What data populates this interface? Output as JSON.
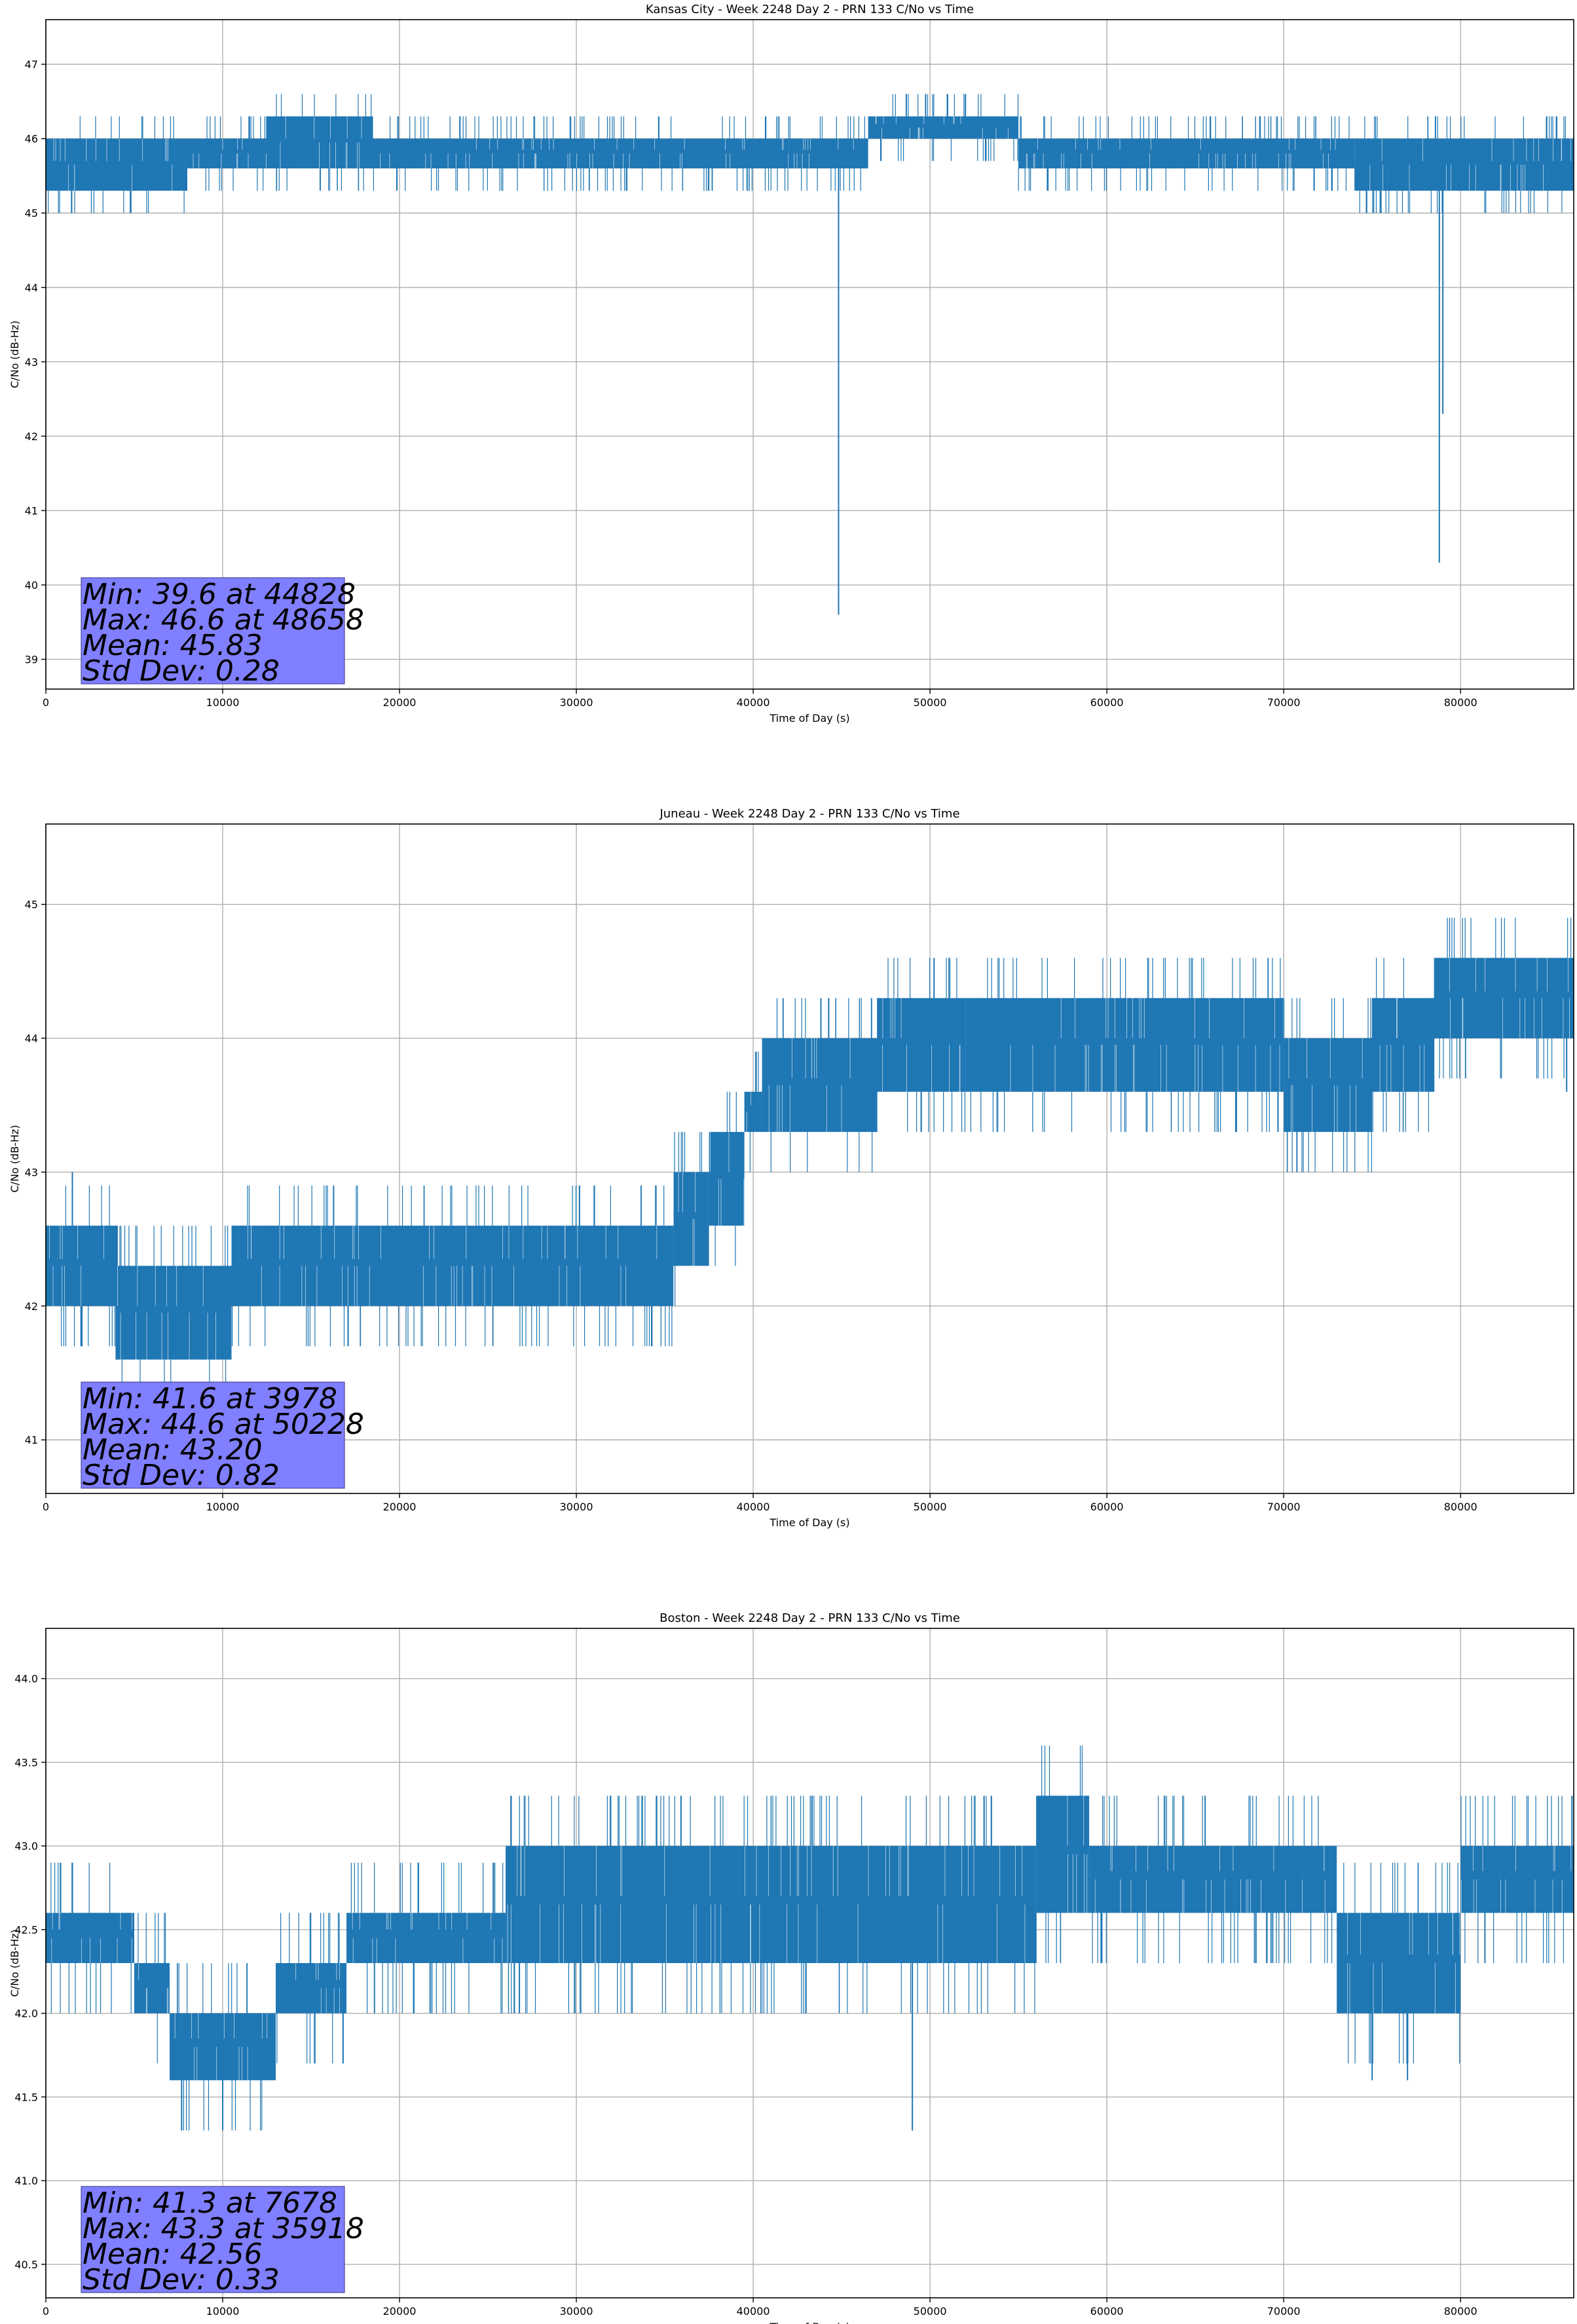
{
  "chart_data": [
    {
      "type": "line",
      "title": "Kansas City - Week 2248 Day 2 - PRN 133 C/No vs Time",
      "xlabel": "Time of Day (s)",
      "ylabel": "C/No (dB-Hz)",
      "xlim": [
        0,
        86400
      ],
      "ylim": [
        38.6,
        47.6
      ],
      "xticks": [
        0,
        10000,
        20000,
        30000,
        40000,
        50000,
        60000,
        70000,
        80000
      ],
      "yticks": [
        39,
        40,
        41,
        42,
        43,
        44,
        45,
        46,
        47
      ],
      "grid": true,
      "series_color": "#1f77b4",
      "bands": [
        {
          "x0": 0,
          "x1": 8000,
          "low": 45.3,
          "high": 46.0
        },
        {
          "x0": 8000,
          "x1": 12500,
          "low": 45.6,
          "high": 46.0
        },
        {
          "x0": 12500,
          "x1": 18500,
          "low": 45.6,
          "high": 46.3
        },
        {
          "x0": 18500,
          "x1": 42000,
          "low": 45.6,
          "high": 46.0
        },
        {
          "x0": 42000,
          "x1": 46500,
          "low": 45.6,
          "high": 46.0
        },
        {
          "x0": 46500,
          "x1": 55000,
          "low": 46.0,
          "high": 46.3
        },
        {
          "x0": 55000,
          "x1": 74000,
          "low": 45.6,
          "high": 46.0
        },
        {
          "x0": 74000,
          "x1": 86400,
          "low": 45.3,
          "high": 46.0
        }
      ],
      "spikes": [
        {
          "x": 44828,
          "y": 39.6
        },
        {
          "x": 48658,
          "y": 46.6
        },
        {
          "x": 52000,
          "y": 46.6
        },
        {
          "x": 75500,
          "y": 45.0
        },
        {
          "x": 78800,
          "y": 40.3
        },
        {
          "x": 79000,
          "y": 42.3
        }
      ],
      "stats": [
        "Min: 39.6 at 44828",
        "Max: 46.6 at 48658",
        "Mean: 45.83",
        "Std Dev: 0.28"
      ]
    },
    {
      "type": "line",
      "title": "Juneau - Week 2248 Day 2 - PRN 133 C/No vs Time",
      "xlabel": "Time of Day (s)",
      "ylabel": "C/No (dB-Hz)",
      "xlim": [
        0,
        86400
      ],
      "ylim": [
        40.6,
        45.6
      ],
      "xticks": [
        0,
        10000,
        20000,
        30000,
        40000,
        50000,
        60000,
        70000,
        80000
      ],
      "yticks": [
        41,
        42,
        43,
        44,
        45
      ],
      "grid": true,
      "series_color": "#1f77b4",
      "bands": [
        {
          "x0": 0,
          "x1": 4000,
          "low": 42.0,
          "high": 42.6
        },
        {
          "x0": 4000,
          "x1": 10500,
          "low": 41.6,
          "high": 42.3
        },
        {
          "x0": 10500,
          "x1": 22000,
          "low": 42.0,
          "high": 42.6
        },
        {
          "x0": 22000,
          "x1": 35500,
          "low": 42.0,
          "high": 42.6
        },
        {
          "x0": 35500,
          "x1": 37500,
          "low": 42.3,
          "high": 43.0
        },
        {
          "x0": 37500,
          "x1": 39500,
          "low": 42.6,
          "high": 43.3
        },
        {
          "x0": 39500,
          "x1": 40500,
          "low": 43.3,
          "high": 43.6
        },
        {
          "x0": 40500,
          "x1": 47000,
          "low": 43.3,
          "high": 44.0
        },
        {
          "x0": 47000,
          "x1": 52000,
          "low": 43.6,
          "high": 44.3
        },
        {
          "x0": 52000,
          "x1": 70000,
          "low": 43.6,
          "high": 44.3
        },
        {
          "x0": 70000,
          "x1": 75000,
          "low": 43.3,
          "high": 44.0
        },
        {
          "x0": 75000,
          "x1": 78500,
          "low": 43.6,
          "high": 44.3
        },
        {
          "x0": 78500,
          "x1": 86400,
          "low": 44.0,
          "high": 44.6
        }
      ],
      "spikes": [
        {
          "x": 3978,
          "y": 41.6
        },
        {
          "x": 1500,
          "y": 43.0
        },
        {
          "x": 50228,
          "y": 44.6
        },
        {
          "x": 86000,
          "y": 43.6
        }
      ],
      "stats": [
        "Min: 41.6 at 3978",
        "Max: 44.6 at 50228",
        "Mean: 43.20",
        "Std Dev: 0.82"
      ]
    },
    {
      "type": "line",
      "title": "Boston - Week 2248 Day 2 - PRN 133 C/No vs Time",
      "xlabel": "Time of Day (s)",
      "ylabel": "C/No (dB-Hz)",
      "xlim": [
        0,
        86400
      ],
      "ylim": [
        40.3,
        44.3
      ],
      "xticks": [
        0,
        10000,
        20000,
        30000,
        40000,
        50000,
        60000,
        70000,
        80000
      ],
      "yticks": [
        40.5,
        41.0,
        41.5,
        42.0,
        42.5,
        43.0,
        43.5,
        44.0
      ],
      "grid": true,
      "series_color": "#1f77b4",
      "bands": [
        {
          "x0": 0,
          "x1": 5000,
          "low": 42.3,
          "high": 42.6
        },
        {
          "x0": 5000,
          "x1": 7000,
          "low": 42.0,
          "high": 42.3
        },
        {
          "x0": 7000,
          "x1": 13000,
          "low": 41.6,
          "high": 42.0
        },
        {
          "x0": 13000,
          "x1": 17000,
          "low": 42.0,
          "high": 42.3
        },
        {
          "x0": 17000,
          "x1": 26000,
          "low": 42.3,
          "high": 42.6
        },
        {
          "x0": 26000,
          "x1": 40000,
          "low": 42.3,
          "high": 43.0
        },
        {
          "x0": 40000,
          "x1": 56000,
          "low": 42.3,
          "high": 43.0
        },
        {
          "x0": 56000,
          "x1": 59000,
          "low": 42.6,
          "high": 43.3
        },
        {
          "x0": 59000,
          "x1": 73000,
          "low": 42.6,
          "high": 43.0
        },
        {
          "x0": 73000,
          "x1": 80000,
          "low": 42.0,
          "high": 42.6
        },
        {
          "x0": 80000,
          "x1": 86400,
          "low": 42.6,
          "high": 43.0
        }
      ],
      "spikes": [
        {
          "x": 7678,
          "y": 41.3
        },
        {
          "x": 10000,
          "y": 41.3
        },
        {
          "x": 35918,
          "y": 43.3
        },
        {
          "x": 49000,
          "y": 41.3
        },
        {
          "x": 75000,
          "y": 41.6
        },
        {
          "x": 77000,
          "y": 41.6
        },
        {
          "x": 86300,
          "y": 43.3
        }
      ],
      "stats": [
        "Min: 41.3 at 7678",
        "Max: 43.3 at 35918",
        "Mean: 42.56",
        "Std Dev: 0.33"
      ]
    }
  ]
}
